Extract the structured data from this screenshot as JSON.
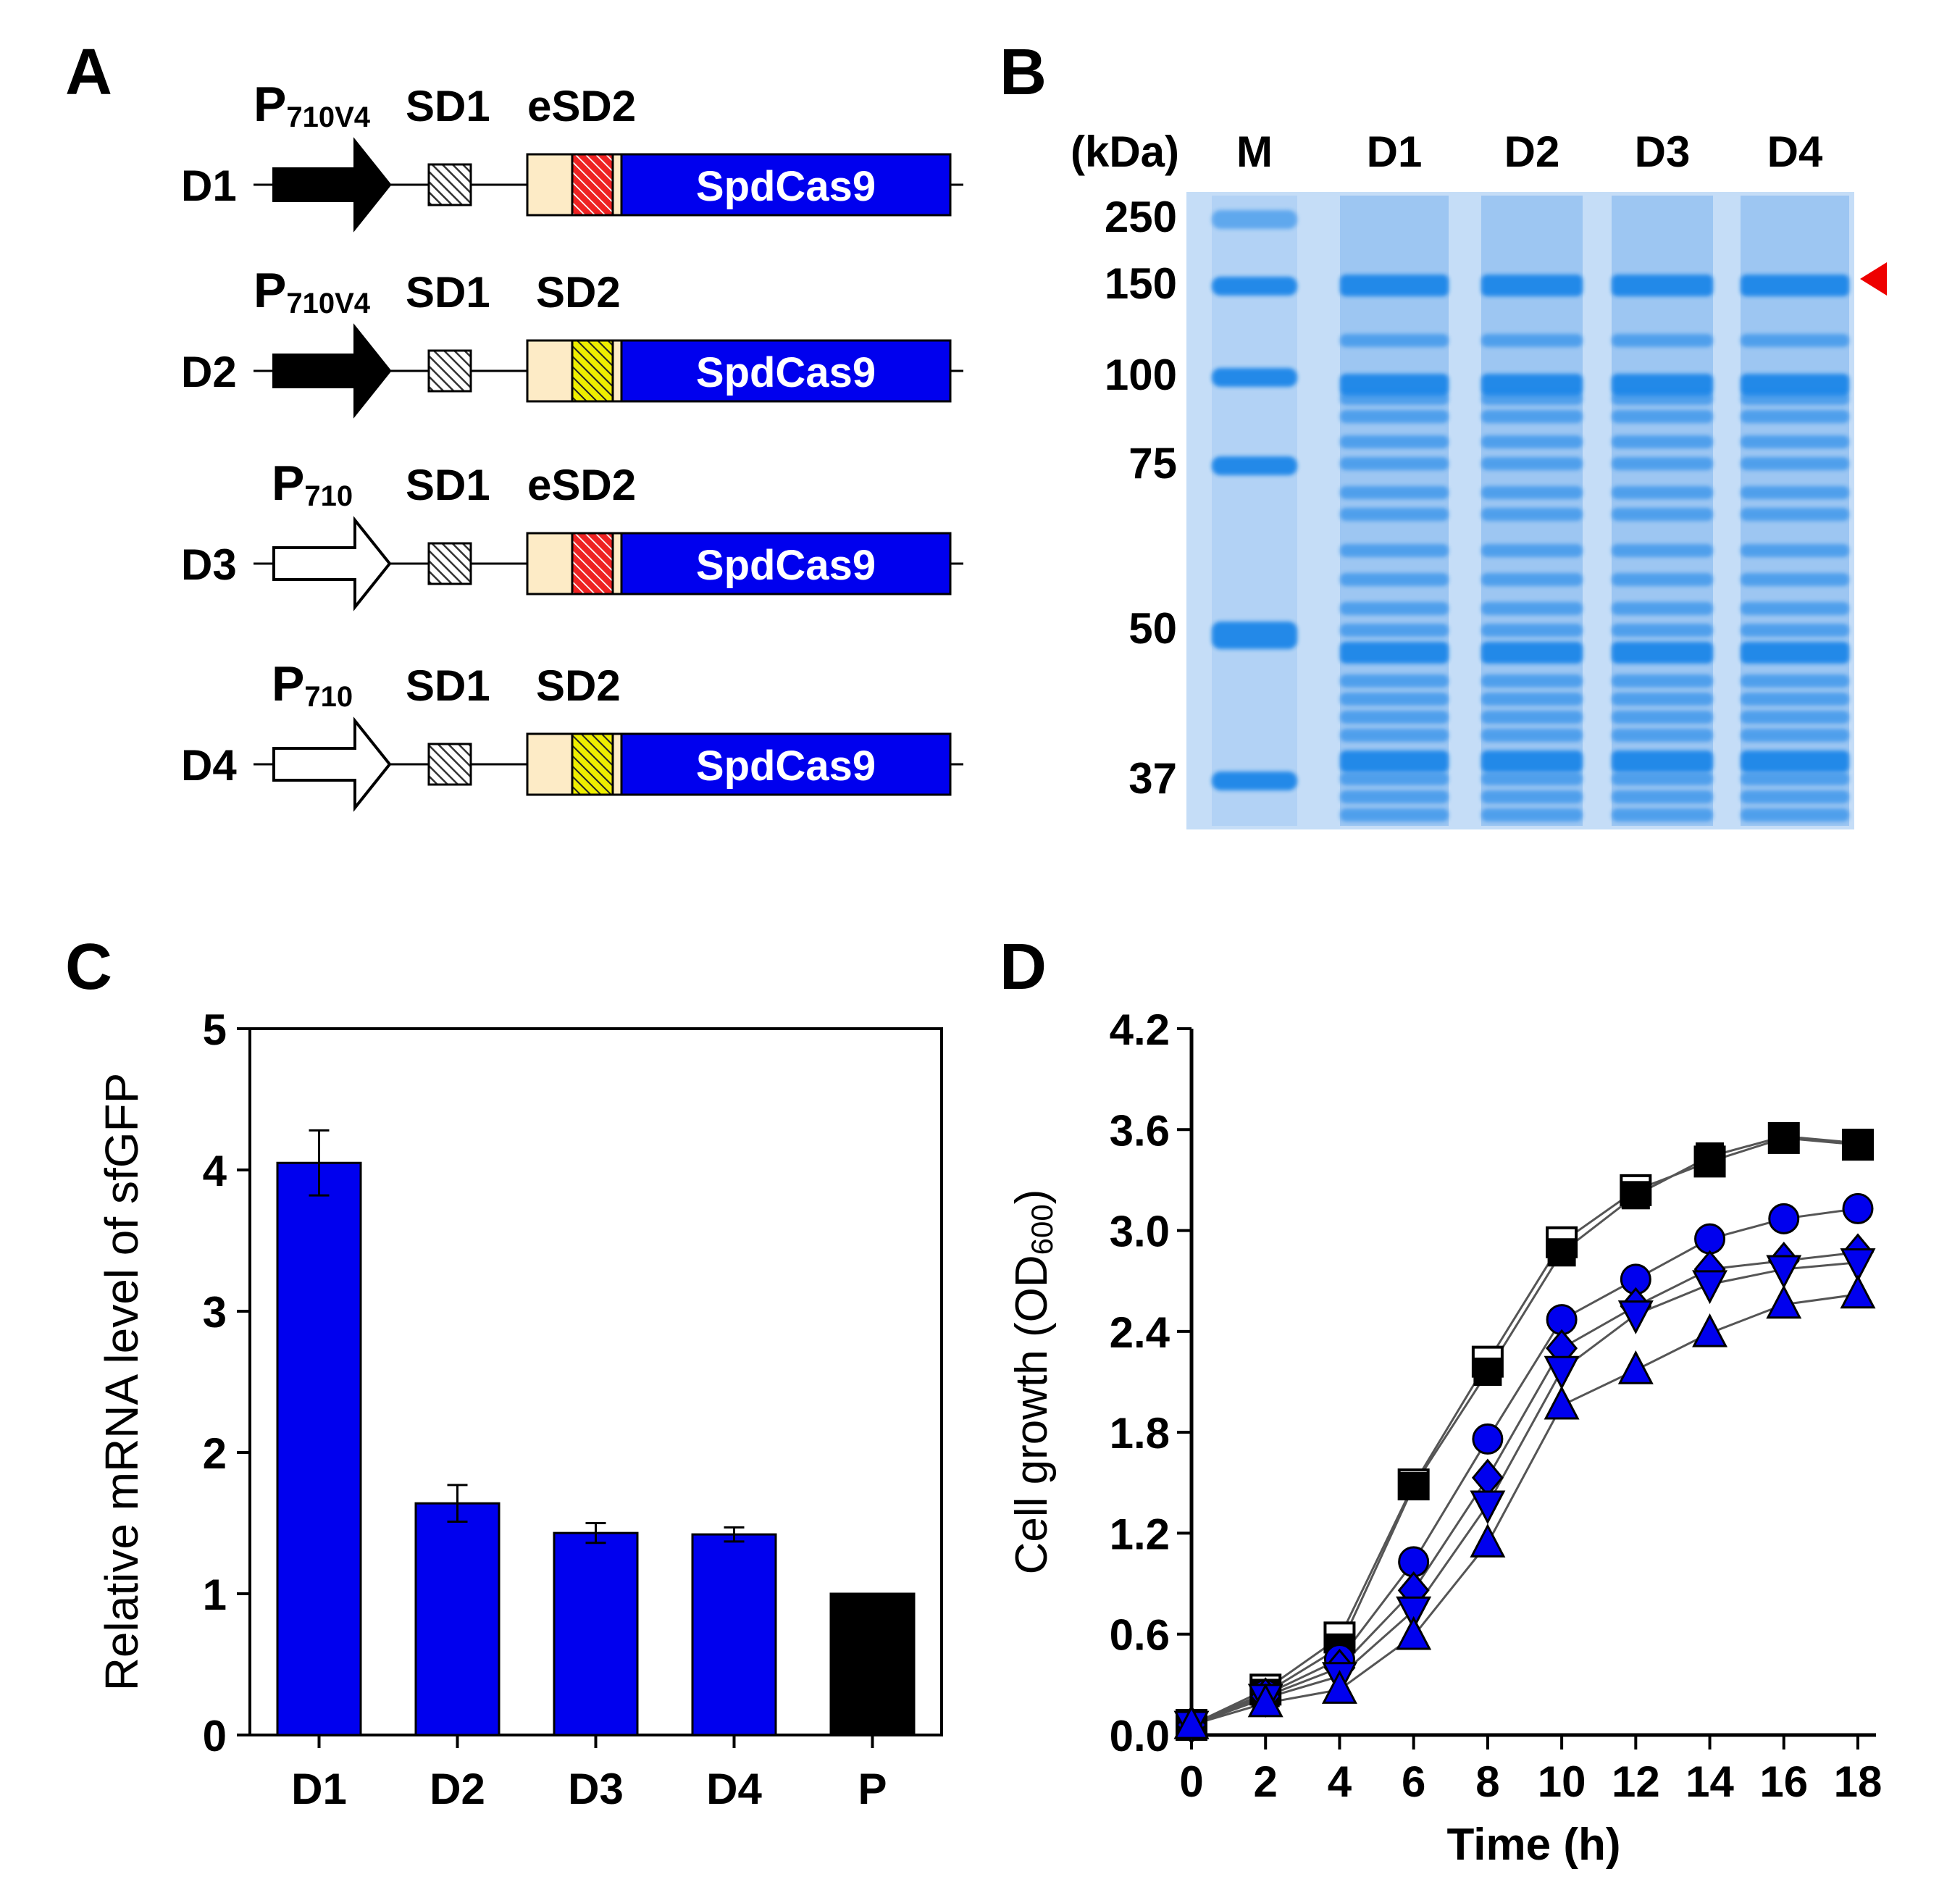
{
  "panel_labels": [
    "A",
    "B",
    "C",
    "D"
  ],
  "colors": {
    "blue": "#0000ee",
    "cream": "#fdebc6",
    "red_hatch": "#ee2222",
    "yellow_hatch": "#eeee00",
    "gel_bg": "#c5ddf7",
    "gel_band": "#1f86e8",
    "arrowhead": "#ee0000"
  },
  "panelA": {
    "gene_label": "SpdCas9",
    "sd1_label": "SD1",
    "constructs": [
      {
        "name": "D1",
        "promoter_main": "P",
        "promoter_sub": "710V4",
        "promoter_strong": true,
        "sd2_label": "eSD2",
        "sd2_type": "red"
      },
      {
        "name": "D2",
        "promoter_main": "P",
        "promoter_sub": "710V4",
        "promoter_strong": true,
        "sd2_label": "SD2",
        "sd2_type": "yellow"
      },
      {
        "name": "D3",
        "promoter_main": "P",
        "promoter_sub": "710",
        "promoter_strong": false,
        "sd2_label": "eSD2",
        "sd2_type": "red"
      },
      {
        "name": "D4",
        "promoter_main": "P",
        "promoter_sub": "710",
        "promoter_strong": false,
        "sd2_label": "SD2",
        "sd2_type": "yellow"
      }
    ]
  },
  "panelB": {
    "unit_label": "(kDa)",
    "lanes": [
      "M",
      "D1",
      "D2",
      "D3",
      "D4"
    ],
    "marker_kda": [
      "250",
      "150",
      "100",
      "75",
      "50",
      "37"
    ]
  },
  "chart_data": [
    {
      "type": "bar",
      "panel": "C",
      "title": "",
      "xlabel": "",
      "ylabel": "Relative mRNA level of sfGFP",
      "categories": [
        "D1",
        "D2",
        "D3",
        "D4",
        "P"
      ],
      "values": [
        4.05,
        1.64,
        1.43,
        1.42,
        1.0
      ],
      "errors": [
        0.23,
        0.13,
        0.07,
        0.05,
        0
      ],
      "bar_colors": [
        "#0000ee",
        "#0000ee",
        "#0000ee",
        "#0000ee",
        "#000000"
      ],
      "ylim": [
        0,
        5
      ],
      "yticks": [
        "0",
        "1",
        "2",
        "3",
        "4",
        "5"
      ]
    },
    {
      "type": "line",
      "panel": "D",
      "title": "",
      "xlabel": "Time (h)",
      "ylabel_main": "Cell growth (OD",
      "ylabel_sub": "600",
      "ylabel_end": ")",
      "xlim": [
        0,
        18
      ],
      "ylim": [
        0,
        4.2
      ],
      "xticks": [
        "0",
        "2",
        "4",
        "6",
        "8",
        "10",
        "12",
        "14",
        "16",
        "18"
      ],
      "yticks": [
        "0.0",
        "0.6",
        "1.2",
        "1.8",
        "2.4",
        "3.0",
        "3.6",
        "4.2"
      ],
      "x": [
        0,
        2,
        4,
        6,
        8,
        10,
        12,
        14,
        16,
        18
      ],
      "series": [
        {
          "name": "open square",
          "marker": "square-open",
          "values": [
            0.06,
            0.27,
            0.58,
            1.49,
            2.22,
            2.93,
            3.24,
            3.41,
            3.55,
            3.51
          ]
        },
        {
          "name": "filled square",
          "marker": "square-black",
          "values": [
            0.06,
            0.25,
            0.52,
            1.48,
            2.16,
            2.87,
            3.21,
            3.44,
            3.56,
            3.52
          ]
        },
        {
          "name": "circle",
          "marker": "circle-blue",
          "values": [
            0.06,
            0.24,
            0.45,
            1.03,
            1.76,
            2.47,
            2.71,
            2.95,
            3.07,
            3.13
          ]
        },
        {
          "name": "diamond",
          "marker": "diamond-blue",
          "values": [
            0.06,
            0.23,
            0.4,
            0.86,
            1.53,
            2.3,
            2.55,
            2.77,
            2.82,
            2.87
          ]
        },
        {
          "name": "down triangle",
          "marker": "triangle-down-blue",
          "values": [
            0.06,
            0.22,
            0.35,
            0.74,
            1.37,
            2.17,
            2.5,
            2.68,
            2.77,
            2.81
          ]
        },
        {
          "name": "up triangle",
          "marker": "triangle-up-blue",
          "values": [
            0.06,
            0.19,
            0.27,
            0.59,
            1.14,
            1.96,
            2.17,
            2.39,
            2.56,
            2.62
          ]
        }
      ]
    }
  ]
}
